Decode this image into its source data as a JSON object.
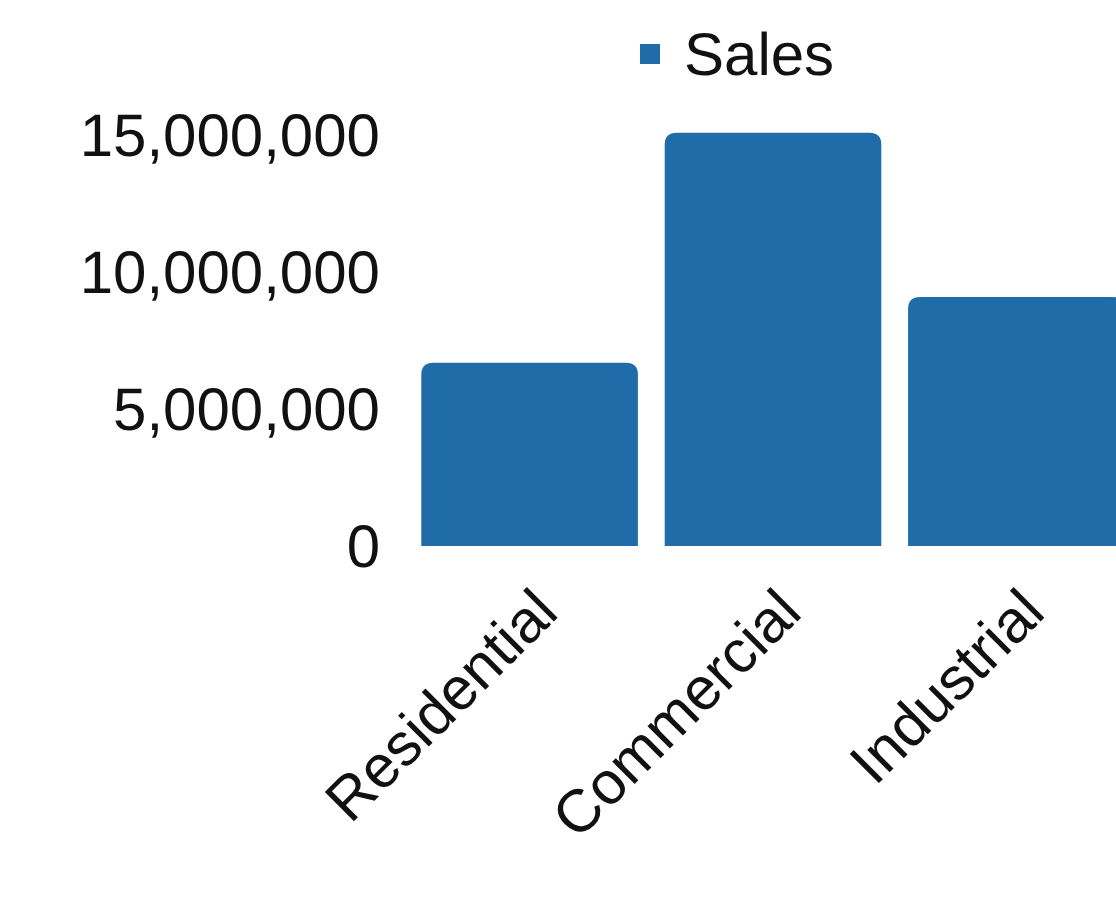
{
  "chart_data": {
    "type": "bar",
    "categories": [
      "Residential",
      "Commercial",
      "Industrial"
    ],
    "series": [
      {
        "name": "Sales",
        "color": "#1f6ca8",
        "values": [
          6700000,
          15100000,
          9100000
        ]
      }
    ],
    "ylim": [
      0,
      15200000
    ],
    "yticks": [
      {
        "value": 0,
        "label": "0"
      },
      {
        "value": 5000000,
        "label": "5,000,000"
      },
      {
        "value": 10000000,
        "label": "10,000,000"
      },
      {
        "value": 15000000,
        "label": "15,000,000"
      }
    ],
    "grid": false,
    "legend": "top"
  }
}
